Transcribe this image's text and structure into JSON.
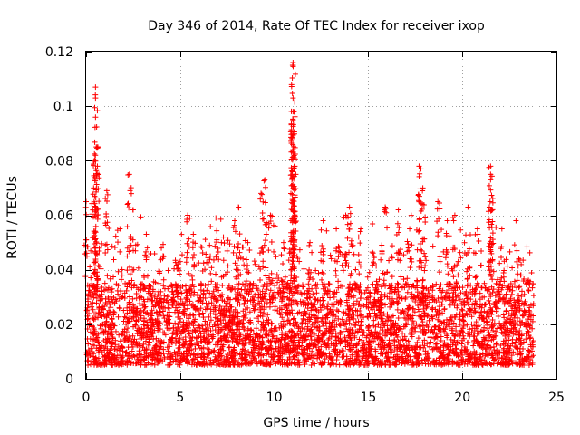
{
  "chart_data": {
    "type": "scatter",
    "title": "Day 346 of 2014, Rate Of TEC Index for receiver ixop",
    "xlabel": "GPS time / hours",
    "ylabel": "ROTI / TECUs",
    "xlim": [
      0,
      25
    ],
    "ylim": [
      0,
      0.12
    ],
    "xticks": [
      0,
      5,
      10,
      15,
      20,
      25
    ],
    "yticks": [
      0,
      0.02,
      0.04,
      0.06,
      0.08,
      0.1,
      0.12
    ],
    "xtick_labels": [
      "0",
      "5",
      "10",
      "15",
      "20",
      "25"
    ],
    "ytick_labels": [
      "0",
      "0.02",
      "0.04",
      "0.06",
      "0.08",
      "0.1",
      "0.12"
    ],
    "grid": true,
    "marker": "+",
    "color": "#ff0000",
    "data_x_range": [
      0,
      23.8
    ],
    "dense_band": [
      0.005,
      0.035
    ],
    "peaks": [
      {
        "x": 0.0,
        "y": 0.065
      },
      {
        "x": 0.4,
        "y": 0.07
      },
      {
        "x": 0.5,
        "y": 0.107
      },
      {
        "x": 0.5,
        "y": 0.103
      },
      {
        "x": 0.5,
        "y": 0.096
      },
      {
        "x": 0.6,
        "y": 0.078
      },
      {
        "x": 1.1,
        "y": 0.069
      },
      {
        "x": 1.8,
        "y": 0.055
      },
      {
        "x": 2.3,
        "y": 0.075
      },
      {
        "x": 2.5,
        "y": 0.062
      },
      {
        "x": 3.2,
        "y": 0.053
      },
      {
        "x": 4.0,
        "y": 0.048
      },
      {
        "x": 5.0,
        "y": 0.043
      },
      {
        "x": 5.4,
        "y": 0.06
      },
      {
        "x": 5.7,
        "y": 0.053
      },
      {
        "x": 6.6,
        "y": 0.045
      },
      {
        "x": 6.9,
        "y": 0.059
      },
      {
        "x": 7.3,
        "y": 0.052
      },
      {
        "x": 7.9,
        "y": 0.058
      },
      {
        "x": 8.1,
        "y": 0.063
      },
      {
        "x": 8.6,
        "y": 0.05
      },
      {
        "x": 9.3,
        "y": 0.068
      },
      {
        "x": 9.5,
        "y": 0.073
      },
      {
        "x": 9.8,
        "y": 0.06
      },
      {
        "x": 10.5,
        "y": 0.05
      },
      {
        "x": 11.0,
        "y": 0.116
      },
      {
        "x": 11.0,
        "y": 0.115
      },
      {
        "x": 11.0,
        "y": 0.103
      },
      {
        "x": 11.0,
        "y": 0.098
      },
      {
        "x": 11.0,
        "y": 0.095
      },
      {
        "x": 11.0,
        "y": 0.084
      },
      {
        "x": 11.1,
        "y": 0.078
      },
      {
        "x": 11.9,
        "y": 0.05
      },
      {
        "x": 12.6,
        "y": 0.058
      },
      {
        "x": 13.3,
        "y": 0.055
      },
      {
        "x": 13.8,
        "y": 0.06
      },
      {
        "x": 14.0,
        "y": 0.063
      },
      {
        "x": 14.6,
        "y": 0.055
      },
      {
        "x": 15.3,
        "y": 0.045
      },
      {
        "x": 15.9,
        "y": 0.063
      },
      {
        "x": 16.6,
        "y": 0.062
      },
      {
        "x": 17.2,
        "y": 0.055
      },
      {
        "x": 17.7,
        "y": 0.078
      },
      {
        "x": 17.8,
        "y": 0.077
      },
      {
        "x": 17.9,
        "y": 0.07
      },
      {
        "x": 18.7,
        "y": 0.065
      },
      {
        "x": 19.2,
        "y": 0.058
      },
      {
        "x": 19.6,
        "y": 0.06
      },
      {
        "x": 20.3,
        "y": 0.063
      },
      {
        "x": 20.8,
        "y": 0.055
      },
      {
        "x": 21.5,
        "y": 0.078
      },
      {
        "x": 21.5,
        "y": 0.075
      },
      {
        "x": 21.5,
        "y": 0.073
      },
      {
        "x": 22.1,
        "y": 0.055
      },
      {
        "x": 22.9,
        "y": 0.047
      },
      {
        "x": 23.0,
        "y": 0.044
      },
      {
        "x": 23.5,
        "y": 0.036
      }
    ]
  }
}
